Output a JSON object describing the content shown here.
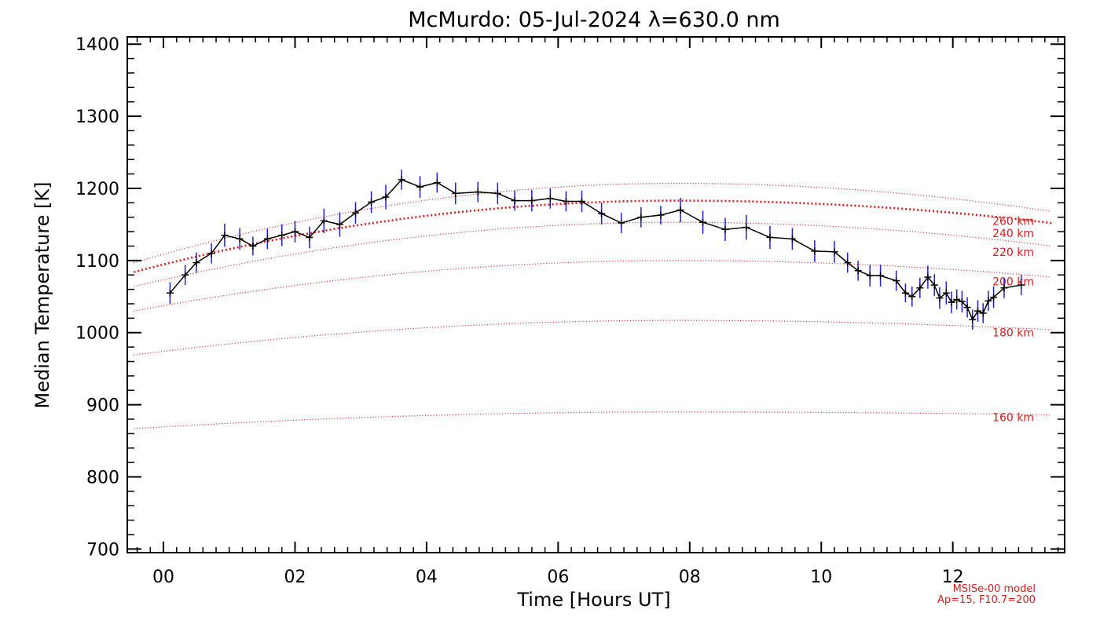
{
  "chart_data": {
    "type": "line",
    "title": "McMurdo: 05-Jul-2024 λ=630.0 nm",
    "xlabel": "Time [Hours UT]",
    "ylabel": "Median Temperature [K]",
    "xlim": [
      -0.55,
      13.7
    ],
    "ylim": [
      695,
      1410
    ],
    "x_ticks": [
      0,
      2,
      4,
      6,
      8,
      10,
      12
    ],
    "x_tick_labels": [
      "00",
      "02",
      "04",
      "06",
      "08",
      "10",
      "12"
    ],
    "y_ticks": [
      700,
      800,
      900,
      1000,
      1100,
      1200,
      1300,
      1400
    ],
    "y_tick_labels": [
      "700",
      "800",
      "900",
      "1000",
      "1100",
      "1200",
      "1300",
      "1400"
    ],
    "grid": false,
    "colors": {
      "data": "#000000",
      "error": "#1e1edc",
      "model": "#e21a1a"
    },
    "series": {
      "x": [
        0.1,
        0.33,
        0.5,
        0.73,
        0.93,
        1.16,
        1.36,
        1.58,
        1.8,
        2.0,
        2.22,
        2.44,
        2.68,
        2.92,
        3.16,
        3.38,
        3.62,
        3.9,
        4.16,
        4.44,
        4.78,
        5.08,
        5.34,
        5.6,
        5.88,
        6.12,
        6.36,
        6.66,
        6.96,
        7.26,
        7.56,
        7.86,
        8.2,
        8.54,
        8.86,
        9.22,
        9.56,
        9.9,
        10.2,
        10.4,
        10.56,
        10.74,
        10.9,
        11.14,
        11.28,
        11.38,
        11.5,
        11.62,
        11.72,
        11.8,
        11.9,
        11.98,
        12.06,
        12.14,
        12.22,
        12.3,
        12.38,
        12.46,
        12.54,
        12.62,
        12.78,
        13.04
      ],
      "y": [
        1055,
        1080,
        1097,
        1110,
        1135,
        1130,
        1120,
        1130,
        1135,
        1140,
        1132,
        1155,
        1150,
        1166,
        1181,
        1188,
        1212,
        1202,
        1208,
        1193,
        1195,
        1193,
        1183,
        1183,
        1186,
        1182,
        1182,
        1165,
        1152,
        1160,
        1163,
        1170,
        1153,
        1143,
        1146,
        1132,
        1130,
        1113,
        1112,
        1097,
        1086,
        1079,
        1079,
        1072,
        1055,
        1050,
        1062,
        1077,
        1066,
        1048,
        1055,
        1042,
        1046,
        1043,
        1035,
        1018,
        1030,
        1027,
        1044,
        1049,
        1062,
        1066
      ],
      "error": [
        15,
        14,
        14,
        14,
        16,
        15,
        13,
        14,
        15,
        15,
        15,
        17,
        17,
        15,
        15,
        17,
        14,
        15,
        14,
        15,
        14,
        15,
        14,
        15,
        14,
        14,
        15,
        15,
        14,
        14,
        13,
        17,
        16,
        16,
        17,
        16,
        15,
        15,
        15,
        14,
        14,
        15,
        15,
        14,
        13,
        14,
        14,
        16,
        15,
        15,
        16,
        15,
        14,
        15,
        14,
        14,
        15,
        14,
        14,
        15,
        14,
        14
      ]
    },
    "model_curves": [
      {
        "label": "160 km",
        "label_value": 883,
        "peak": 890,
        "start": 867,
        "end": 886
      },
      {
        "label": "180 km",
        "label_value": 1000,
        "peak": 1017,
        "start": 969,
        "end": 1004
      },
      {
        "label": "200 km",
        "label_value": 1071,
        "peak": 1100,
        "start": 1030,
        "end": 1077
      },
      {
        "label": "220 km",
        "label_value": 1112,
        "peak": 1153,
        "start": 1064,
        "end": 1120
      },
      {
        "label": "240 km",
        "label_value": 1138,
        "peak": 1183,
        "start": 1084,
        "end": 1152
      },
      {
        "label": "260 km",
        "label_value": 1155,
        "peak": 1207,
        "start": 1097,
        "end": 1168
      }
    ],
    "model_bold_index": 4,
    "model_curve_x_range": [
      -0.45,
      13.5
    ],
    "model_peak_x": 7.8,
    "model_notes": [
      "MSISe-00 model",
      "Ap=15, F10.7=200"
    ]
  }
}
